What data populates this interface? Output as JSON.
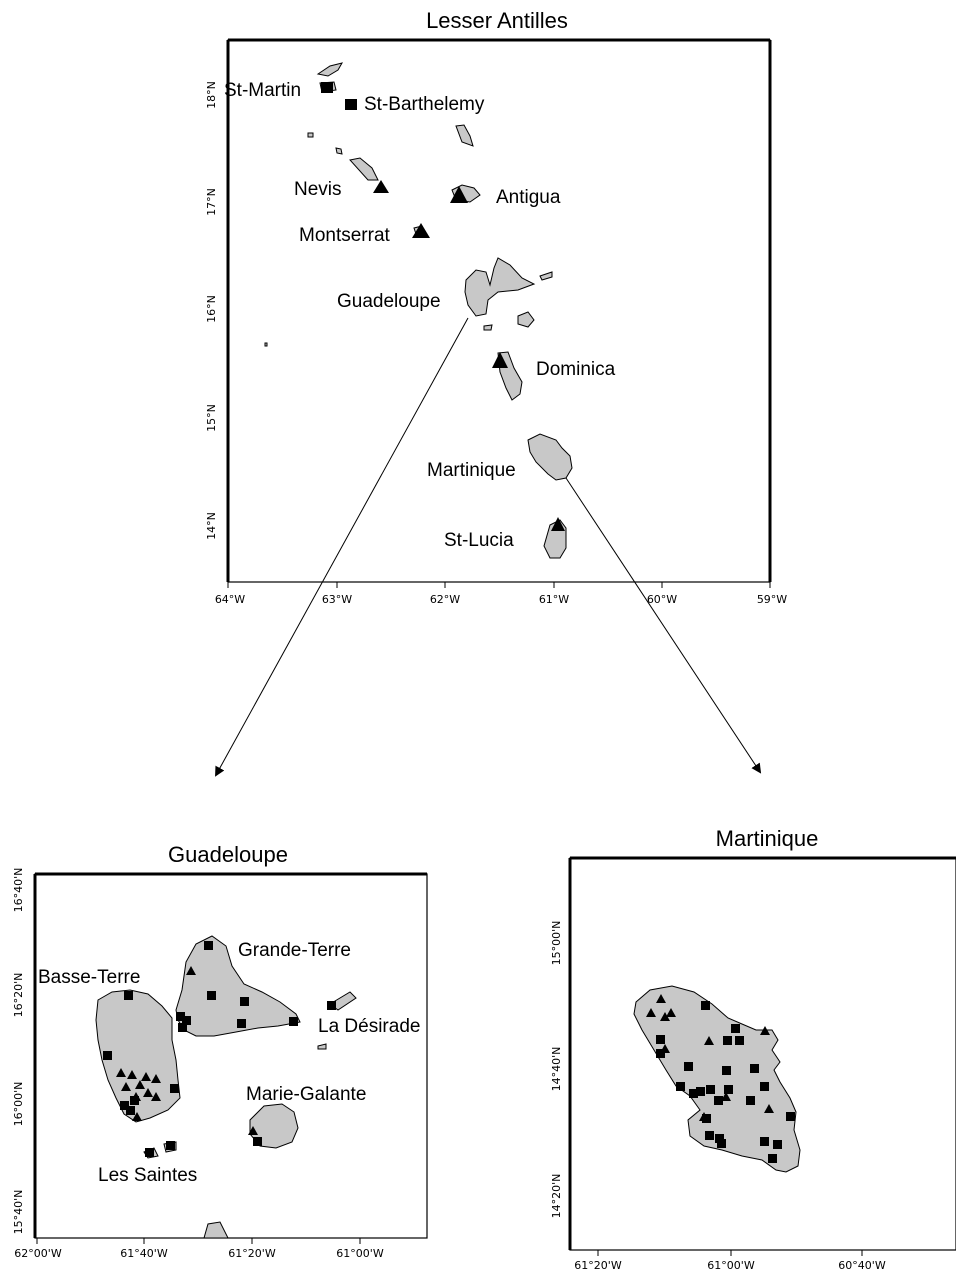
{
  "maps": {
    "antilles": {
      "title": "Lesser Antilles",
      "lat_ticks": [
        "18°N",
        "17°N",
        "16°N",
        "15°N",
        "14°N"
      ],
      "lon_ticks": [
        "64°W",
        "63°W",
        "62°W",
        "61°W",
        "60°W",
        "59°W"
      ],
      "islands": {
        "st_martin": "St-Martin",
        "st_barthelemy": "St-Barthelemy",
        "nevis": "Nevis",
        "antigua": "Antigua",
        "montserrat": "Montserrat",
        "guadeloupe": "Guadeloupe",
        "dominica": "Dominica",
        "martinique": "Martinique",
        "st_lucia": "St-Lucia"
      }
    },
    "guadeloupe": {
      "title": "Guadeloupe",
      "lat_ticks": [
        "16°40'N",
        "16°20'N",
        "16°00'N",
        "15°40'N"
      ],
      "lon_ticks": [
        "62°00'W",
        "61°40'W",
        "61°20'W",
        "61°00'W"
      ],
      "islands": {
        "basse_terre": "Basse-Terre",
        "grande_terre": "Grande-Terre",
        "la_desirade": "La Désirade",
        "marie_galante": "Marie-Galante",
        "les_saintes": "Les Saintes"
      }
    },
    "martinique": {
      "title": "Martinique",
      "lat_ticks": [
        "15°00'N",
        "14°40'N",
        "14°20'N"
      ],
      "lon_ticks": [
        "61°20'W",
        "61°00'W",
        "60°40'W"
      ]
    }
  },
  "legend_symbols": {
    "square": "square-marker",
    "triangle": "triangle-marker"
  },
  "colors": {
    "land": "#c8c8c8",
    "outline": "#000000",
    "background": "#ffffff"
  }
}
